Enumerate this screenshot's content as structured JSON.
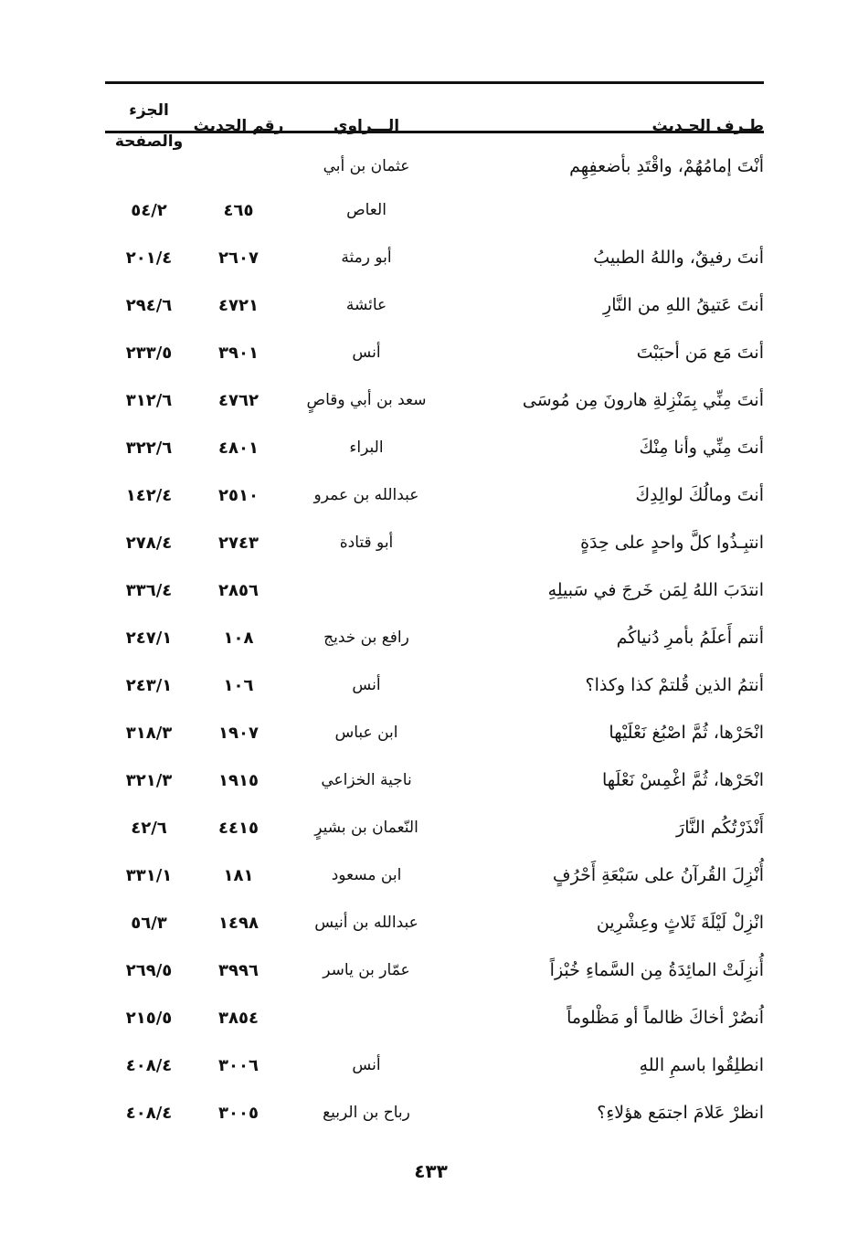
{
  "header": {
    "col_hadith": "طـرف الحـديث",
    "col_narrator": "الـــراوي",
    "col_number": "رقم الحديث",
    "col_volume_page": "الجزء والصفحة"
  },
  "rows": [
    {
      "hadith": "أنْتَ إمامُهُمْ، واقْتَدِ بأضعفِهِم",
      "narrator": "عثمان بن أبي",
      "number": "",
      "volume_page": ""
    },
    {
      "hadith": "",
      "narrator": "العاص",
      "number": "٤٦٥",
      "volume_page": "٥٤/٢"
    },
    {
      "hadith": "أنتَ رفيقٌ، واللهُ الطبيبُ",
      "narrator": "أبو رمثة",
      "number": "٢٦٠٧",
      "volume_page": "٢٠١/٤"
    },
    {
      "hadith": "أنتَ عَتيقُ اللهِ من النَّارِ",
      "narrator": "عائشة",
      "number": "٤٧٢١",
      "volume_page": "٢٩٤/٦"
    },
    {
      "hadith": "أنتَ مَع مَن أحبَبْتَ",
      "narrator": "أنس",
      "number": "٣٩٠١",
      "volume_page": "٢٣٣/٥"
    },
    {
      "hadith": "أنتَ مِنِّي بِمَنْزِلةِ هارونَ مِن مُوسَى",
      "narrator": "سعد بن أبي وقاصٍ",
      "number": "٤٧٦٢",
      "volume_page": "٣١٢/٦"
    },
    {
      "hadith": "أنتَ مِنِّي وأنا مِنْكَ",
      "narrator": "البراء",
      "number": "٤٨٠١",
      "volume_page": "٣٢٢/٦"
    },
    {
      "hadith": "أنتَ ومالُكَ لوالِدِكَ",
      "narrator": "عبدالله بن عمرو",
      "number": "٢٥١٠",
      "volume_page": "١٤٢/٤"
    },
    {
      "hadith": "انتبِـذُوا كلَّ واحدٍ على حِدَةٍ",
      "narrator": "أبو قتادة",
      "number": "٢٧٤٣",
      "volume_page": "٢٧٨/٤"
    },
    {
      "hadith": "انتدَبَ اللهُ لِمَن خَرجَ في سَبيلِهِ",
      "narrator": "",
      "number": "٢٨٥٦",
      "volume_page": "٣٣٦/٤"
    },
    {
      "hadith": "أنتم أَعلَمُ بأمرِ دُنياكُم",
      "narrator": "رافع بن خديج",
      "number": "١٠٨",
      "volume_page": "٢٤٧/١"
    },
    {
      "hadith": "أنتمُ الذين قُلتمْ كذا وكذا؟",
      "narrator": "أنس",
      "number": "١٠٦",
      "volume_page": "٢٤٣/١"
    },
    {
      "hadith": "انْحَرْها، ثُمَّ اصْبُغ نَعْلَيْها",
      "narrator": "ابن عباس",
      "number": "١٩٠٧",
      "volume_page": "٣١٨/٣"
    },
    {
      "hadith": "انْحَرْها، ثُمَّ اغْمِسْ نَعْلَها",
      "narrator": "ناجية الخزاعي",
      "number": "١٩١٥",
      "volume_page": "٣٢١/٣"
    },
    {
      "hadith": "أَنْذَرْتُكُم النَّارَ",
      "narrator": "النّعمان بن بشيرٍ",
      "number": "٤٤١٥",
      "volume_page": "٤٢/٦"
    },
    {
      "hadith": "أُنْزِلَ القُرآنُ على سَبْعَةِ أَحْرُفٍ",
      "narrator": "ابن مسعود",
      "number": "١٨١",
      "volume_page": "٣٣١/١"
    },
    {
      "hadith": "انْزِلْ لَيْلَةَ ثَلاثٍ وعِشْرِين",
      "narrator": "عبدالله بن أنيس",
      "number": "١٤٩٨",
      "volume_page": "٥٦/٣"
    },
    {
      "hadith": "أُنزِلَتْ المائِدَةُ مِن السَّماءِ خُبْزاً",
      "narrator": "عمّار بن ياسر",
      "number": "٣٩٩٦",
      "volume_page": "٢٦٩/٥"
    },
    {
      "hadith": "اُنصُرْ أخاكَ ظالماً أو مَظْلوماً",
      "narrator": "",
      "number": "٣٨٥٤",
      "volume_page": "٢١٥/٥"
    },
    {
      "hadith": "انطلِقُوا باسمِ اللهِ",
      "narrator": "أنس",
      "number": "٣٠٠٦",
      "volume_page": "٤٠٨/٤"
    },
    {
      "hadith": "انظرْ عَلامَ اجتمَع هؤلاءِ؟",
      "narrator": "رباح بن الربيع",
      "number": "٣٠٠٥",
      "volume_page": "٤٠٨/٤"
    }
  ],
  "page_number": "٤٣٣"
}
